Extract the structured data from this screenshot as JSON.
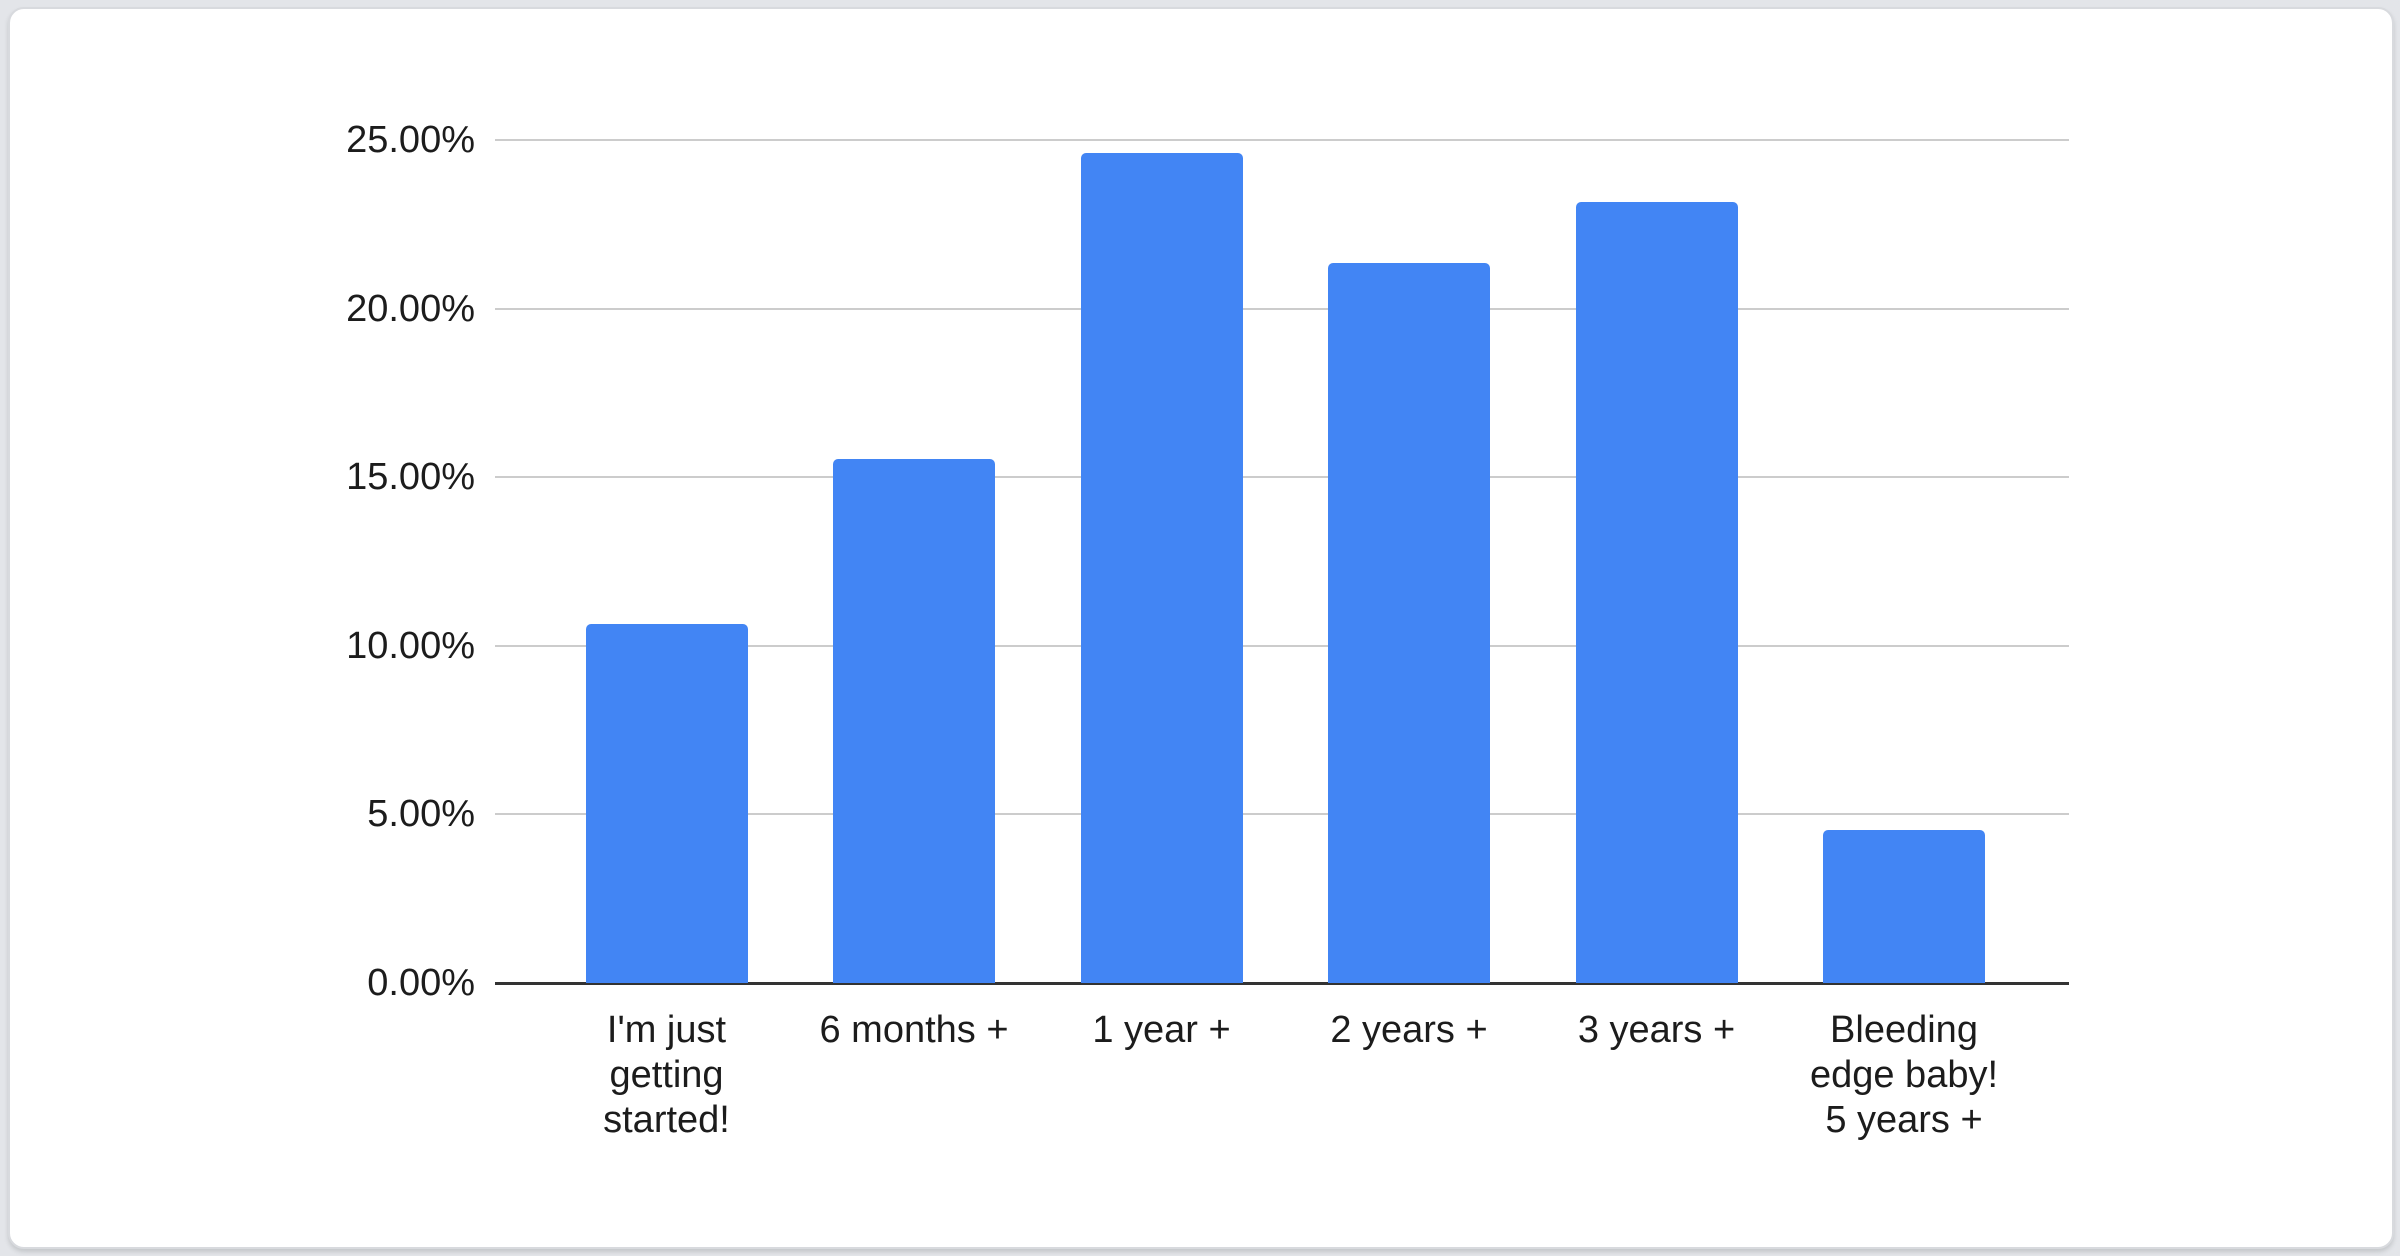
{
  "chart_data": {
    "type": "bar",
    "title": "",
    "xlabel": "",
    "ylabel": "",
    "categories": [
      "I'm just getting started!",
      "6 months +",
      "1 year +",
      "2 years +",
      "3 years +",
      "Bleeding edge baby! 5 years +"
    ],
    "category_label_lines": [
      [
        "I'm just",
        "getting",
        "started!"
      ],
      [
        "6 months +"
      ],
      [
        "1 year +"
      ],
      [
        "2 years +"
      ],
      [
        "3 years +"
      ],
      [
        "Bleeding",
        "edge baby!",
        "5 years +"
      ]
    ],
    "values": [
      10.65,
      15.55,
      24.6,
      21.35,
      23.15,
      4.55
    ],
    "value_format": "percent",
    "ylim": [
      0,
      25
    ],
    "ytick_interval": 5,
    "ytick_labels": [
      "0.00%",
      "5.00%",
      "10.00%",
      "15.00%",
      "20.00%",
      "25.00%"
    ],
    "grid": "horizontal",
    "legend": "none",
    "colors": {
      "bar": "#4285f4",
      "gridline": "#cccccc",
      "axis_line": "#333333",
      "axis_text": "#1c1c1c",
      "card_background": "#ffffff",
      "card_border": "#d8dade",
      "page_background": "#e3e5e9"
    }
  }
}
